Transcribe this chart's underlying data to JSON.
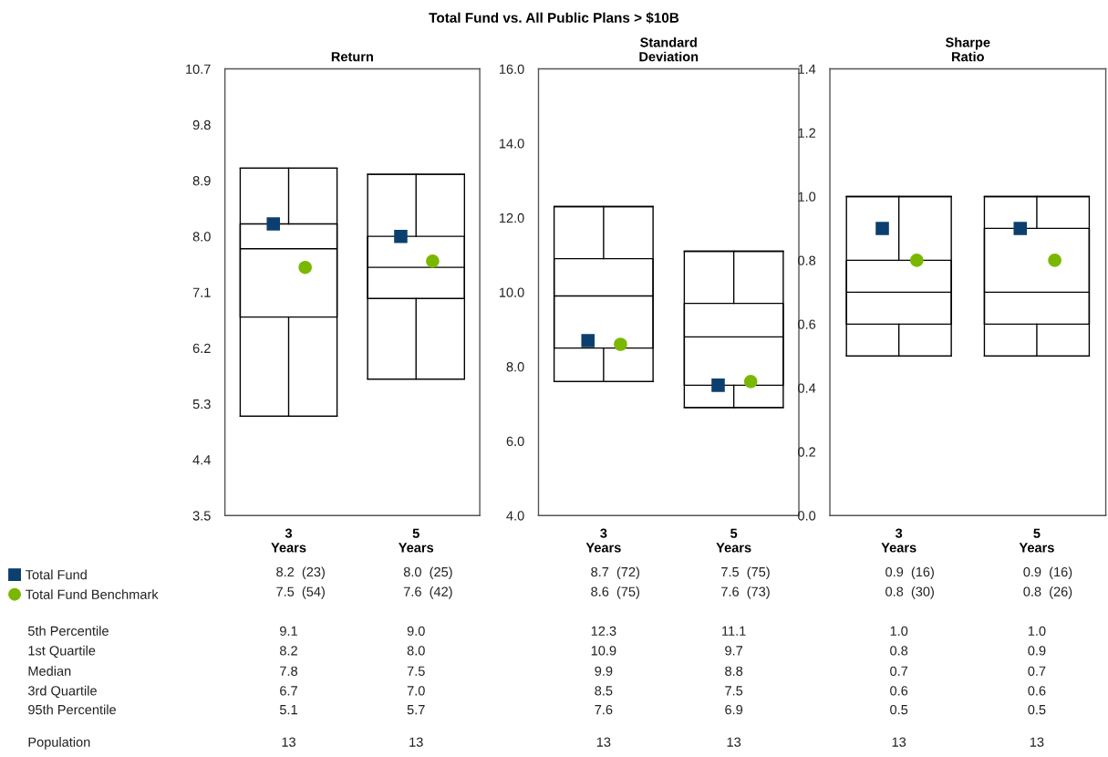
{
  "chart_data": [
    {
      "type": "box",
      "title": "Return",
      "categories": [
        "3\nYears",
        "5\nYears"
      ],
      "boxes": [
        {
          "low": 5.1,
          "q1": 6.7,
          "median": 7.8,
          "q3": 8.2,
          "high": 9.1
        },
        {
          "low": 5.7,
          "q1": 7.0,
          "median": 7.5,
          "q3": 8.0,
          "high": 9.0
        }
      ],
      "series": [
        {
          "name": "Total Fund",
          "type": "scatter",
          "color": "#0b3f6e",
          "marker": "square",
          "values": [
            8.2,
            8.0
          ],
          "value_labels": [
            "8.2  (23)",
            "8.0  (25)"
          ]
        },
        {
          "name": "Total Fund Benchmark",
          "type": "scatter",
          "color": "#7ab800",
          "marker": "circle",
          "values": [
            7.5,
            7.6
          ],
          "value_labels": [
            "7.5  (54)",
            "7.6  (42)"
          ]
        }
      ],
      "ylim": [
        3.5,
        10.7
      ],
      "yticks": [
        3.5,
        4.4,
        5.3,
        6.2,
        7.1,
        {
          "value": 8,
          "label": "8.0"
        },
        8.9,
        9.8,
        10.7
      ],
      "data_labels": true,
      "legend": "bottom left",
      "annotations": [
        "Total Fund vs. All Public Plans > $10B",
        "5th Percentile",
        "1st Quartile",
        "Median",
        "3rd Quartile",
        "95th Percentile",
        "Population",
        "9.1",
        "8.2",
        "7.8",
        "6.7",
        "5.1",
        "13",
        "9.0",
        "8.0",
        "7.5",
        "7.0",
        "5.7",
        "13"
      ]
    },
    {
      "type": "box",
      "title": "Standard\nDeviation",
      "categories": [
        "3\nYears",
        "5\nYears"
      ],
      "boxes": [
        {
          "low": 7.6,
          "q1": 8.5,
          "median": 9.9,
          "q3": 10.9,
          "high": 12.3
        },
        {
          "low": 6.9,
          "q1": 7.5,
          "median": 8.8,
          "q3": 9.7,
          "high": 11.1
        }
      ],
      "series": [
        {
          "name": "Total Fund",
          "type": "scatter",
          "color": "#0b3f6e",
          "marker": "square",
          "values": [
            8.7,
            7.5
          ],
          "value_labels": [
            "8.7  (72)",
            "7.5  (75)"
          ]
        },
        {
          "name": "Total Fund Benchmark",
          "type": "scatter",
          "color": "#7ab800",
          "marker": "circle",
          "values": [
            8.6,
            7.6
          ],
          "value_labels": [
            "8.6  (75)",
            "7.6  (73)"
          ]
        }
      ],
      "annotations": [
        "12.3",
        "10.9",
        "9.9",
        "8.5",
        "7.6",
        "13",
        "11.1",
        "9.7",
        "8.8",
        "7.5",
        "6.9",
        "13"
      ],
      "ylim": [
        4.0,
        16.0
      ],
      "yticks": [
        {
          "value": 4,
          "label": "4.0"
        },
        {
          "value": 6,
          "label": "6.0"
        },
        {
          "value": 8,
          "label": "8.0"
        },
        {
          "value": 10,
          "label": "10.0"
        },
        {
          "value": 12,
          "label": "12.0"
        },
        {
          "value": 14,
          "label": "14.0"
        },
        {
          "value": 16,
          "label": "16.0"
        }
      ],
      "data_labels": true
    },
    {
      "type": "box",
      "title": "Sharpe\nRatio",
      "categories": [
        "3\nYears",
        "5\nYears"
      ],
      "boxes": [
        {
          "low": 0.5,
          "q1": 0.6,
          "median": 0.7,
          "q3": 0.8,
          "high": 1.0
        },
        {
          "low": 0.5,
          "q1": 0.6,
          "median": 0.7,
          "q3": 0.9,
          "high": 1.0
        }
      ],
      "series": [
        {
          "name": "Total Fund",
          "type": "scatter",
          "color": "#0b3f6e",
          "marker": "square",
          "values": [
            0.9,
            0.9
          ],
          "value_labels": [
            "0.9  (16)",
            "0.9  (16)"
          ]
        },
        {
          "name": "Total Fund Benchmark",
          "type": "scatter",
          "color": "#7ab800",
          "marker": "circle",
          "values": [
            0.8,
            0.8
          ],
          "value_labels": [
            "0.8  (30)",
            "0.8  (26)"
          ]
        }
      ],
      "annotations": [
        "1.0",
        "0.8",
        "0.7",
        "0.6",
        "0.5",
        "13",
        "1.0",
        "0.9",
        "0.7",
        "0.6",
        "0.5",
        "13"
      ],
      "ylim": [
        0.0,
        1.4
      ],
      "yticks": [
        {
          "value": 0,
          "label": "0.0"
        },
        0.2,
        0.4,
        0.6,
        0.8,
        {
          "value": 1,
          "label": "1.0"
        },
        1.2,
        1.4
      ],
      "data_labels": true
    }
  ]
}
